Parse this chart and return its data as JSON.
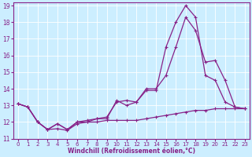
{
  "xlabel": "Windchill (Refroidissement éolien,°C)",
  "bg_color": "#cceeff",
  "line_color": "#882288",
  "xlim": [
    -0.5,
    23.5
  ],
  "ylim": [
    11,
    19.2
  ],
  "yticks": [
    11,
    12,
    13,
    14,
    15,
    16,
    17,
    18,
    19
  ],
  "xticks": [
    0,
    1,
    2,
    3,
    4,
    5,
    6,
    7,
    8,
    9,
    10,
    11,
    12,
    13,
    14,
    15,
    16,
    17,
    18,
    19,
    20,
    21,
    22,
    23
  ],
  "series1_x": [
    0,
    1,
    2,
    3,
    4,
    5,
    6,
    7,
    8,
    9,
    10,
    11,
    12,
    13,
    14,
    15,
    16,
    17,
    18,
    19,
    20,
    21,
    22,
    23
  ],
  "series1_y": [
    13.1,
    12.9,
    12.0,
    11.55,
    11.9,
    11.55,
    12.0,
    12.0,
    12.2,
    12.3,
    13.2,
    13.3,
    13.2,
    13.9,
    13.9,
    16.5,
    18.0,
    19.0,
    18.3,
    14.8,
    14.5,
    13.2,
    12.9,
    12.8
  ],
  "series2_x": [
    0,
    1,
    2,
    3,
    4,
    5,
    6,
    7,
    8,
    9,
    10,
    11,
    12,
    13,
    14,
    15,
    16,
    17,
    18,
    19,
    20,
    21,
    22,
    23
  ],
  "series2_y": [
    13.1,
    12.9,
    12.0,
    11.55,
    11.9,
    11.55,
    12.0,
    12.1,
    12.2,
    12.2,
    13.3,
    13.0,
    13.2,
    14.0,
    14.0,
    14.8,
    16.5,
    18.3,
    17.5,
    15.6,
    15.7,
    14.5,
    12.9,
    12.8
  ],
  "series3_x": [
    0,
    1,
    2,
    3,
    4,
    5,
    6,
    7,
    8,
    9,
    10,
    11,
    12,
    13,
    14,
    15,
    16,
    17,
    18,
    19,
    20,
    21,
    22,
    23
  ],
  "series3_y": [
    13.1,
    12.9,
    12.0,
    11.55,
    11.6,
    11.5,
    11.9,
    12.0,
    12.0,
    12.1,
    12.1,
    12.1,
    12.1,
    12.2,
    12.3,
    12.4,
    12.5,
    12.6,
    12.7,
    12.7,
    12.8,
    12.8,
    12.8,
    12.8
  ]
}
